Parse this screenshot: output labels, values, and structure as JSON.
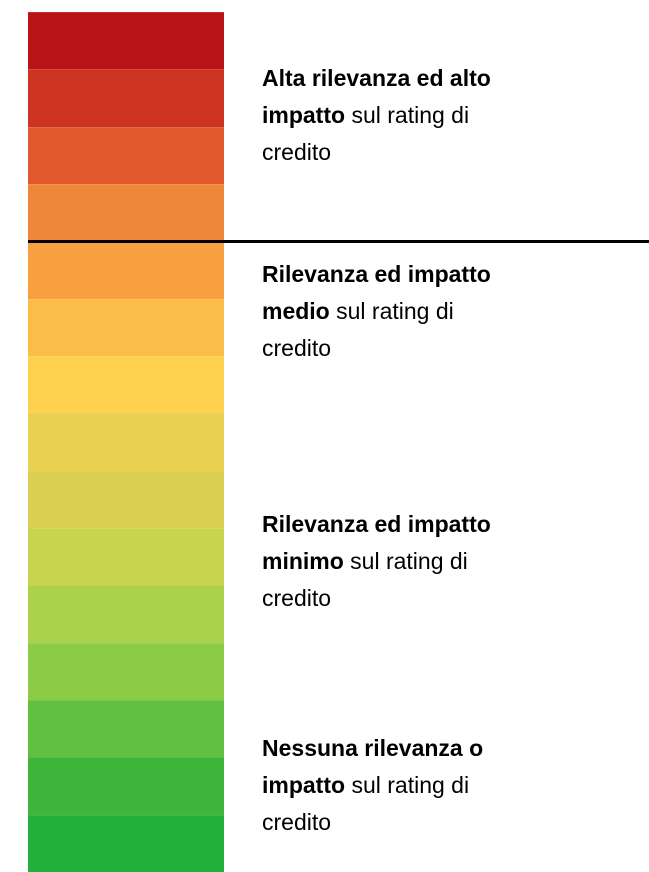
{
  "items": [
    {
      "line1": "Alta rilevanza ed alto",
      "bold2": "impatto",
      "rest2": "sul rating di",
      "line3": "credito"
    },
    {
      "line1": "Rilevanza ed impatto",
      "bold2": "medio",
      "rest2": "sul rating di",
      "line3": "credito"
    },
    {
      "line1": "Rilevanza ed impatto",
      "bold2": "minimo",
      "rest2": "sul rating di",
      "line3": "credito"
    },
    {
      "line1": "Nessuna rilevanza o",
      "bold2": "impatto",
      "rest2": "sul rating di",
      "line3": "credito"
    }
  ]
}
